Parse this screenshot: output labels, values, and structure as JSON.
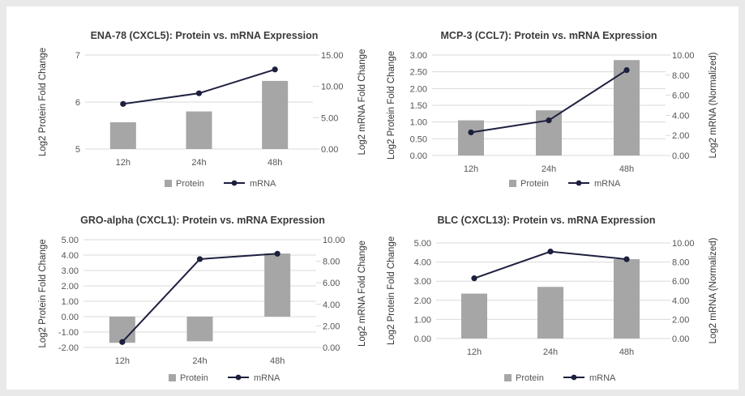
{
  "colors": {
    "bar": "#a6a6a6",
    "line": "#1d1f3e",
    "grid": "#d9d9d9",
    "text": "#555555"
  },
  "chart_data": [
    {
      "type": "bar-line combo",
      "title": "ENA-78 (CXCL5): Protein vs. mRNA Expression",
      "categories": [
        "12h",
        "24h",
        "48h"
      ],
      "ylabel": "Log2 Protein Fold Change",
      "y2label": "Log2 mRNA Fold Change",
      "ylim": [
        5,
        7
      ],
      "yticks": [
        5,
        6,
        7
      ],
      "ytick_labels": [
        "5",
        "6",
        "7"
      ],
      "y2lim": [
        0,
        15
      ],
      "y2ticks": [
        0,
        5,
        10,
        15
      ],
      "y2tick_labels": [
        "0.00",
        "5.00",
        "10.00",
        "15.00"
      ],
      "series": [
        {
          "name": "Protein",
          "kind": "bar",
          "axis": "left",
          "values": [
            5.57,
            5.8,
            6.45
          ]
        },
        {
          "name": "mRNA",
          "kind": "line",
          "axis": "right",
          "values": [
            7.2,
            8.9,
            12.7
          ]
        }
      ],
      "grid": "horizontal",
      "legend": "bottom"
    },
    {
      "type": "bar-line combo",
      "title": "MCP-3 (CCL7): Protein vs. mRNA Expression",
      "categories": [
        "12h",
        "24h",
        "48h"
      ],
      "ylabel": "Log2 Protein Fold Change",
      "y2label": "Log2 mRNA (Normalized)",
      "ylim": [
        0,
        3
      ],
      "yticks": [
        0,
        0.5,
        1,
        1.5,
        2,
        2.5,
        3
      ],
      "ytick_labels": [
        "0.00",
        "0.50",
        "1.00",
        "1.50",
        "2.00",
        "2.50",
        "3.00"
      ],
      "y2lim": [
        0,
        10
      ],
      "y2ticks": [
        0,
        2,
        4,
        6,
        8,
        10
      ],
      "y2tick_labels": [
        "0.00",
        "2.00",
        "4.00",
        "6.00",
        "8.00",
        "10.00"
      ],
      "series": [
        {
          "name": "Protein",
          "kind": "bar",
          "axis": "left",
          "values": [
            1.05,
            1.35,
            2.85
          ]
        },
        {
          "name": "mRNA",
          "kind": "line",
          "axis": "right",
          "values": [
            2.3,
            3.5,
            8.5
          ]
        }
      ],
      "grid": "horizontal",
      "legend": "bottom"
    },
    {
      "type": "bar-line combo",
      "title": "GRO-alpha (CXCL1): Protein vs. mRNA Expression",
      "categories": [
        "12h",
        "24h",
        "48h"
      ],
      "ylabel": "Log2 Protein Fold Change",
      "y2label": "Log2 mRNA Fold Change",
      "ylim": [
        -2,
        5
      ],
      "yticks": [
        -2,
        -1,
        0,
        1,
        2,
        3,
        4,
        5
      ],
      "ytick_labels": [
        "-2.00",
        "-1.00",
        "0.00",
        "1.00",
        "2.00",
        "3.00",
        "4.00",
        "5.00"
      ],
      "y2lim": [
        0,
        10
      ],
      "y2ticks": [
        0,
        2,
        4,
        6,
        8,
        10
      ],
      "y2tick_labels": [
        "0.00",
        "2.00",
        "4.00",
        "6.00",
        "8.00",
        "10.00"
      ],
      "series": [
        {
          "name": "Protein",
          "kind": "bar",
          "axis": "left",
          "values": [
            -1.7,
            -1.6,
            4.1
          ]
        },
        {
          "name": "mRNA",
          "kind": "line",
          "axis": "right",
          "values": [
            0.5,
            8.2,
            8.7
          ]
        }
      ],
      "grid": "horizontal",
      "legend": "bottom"
    },
    {
      "type": "bar-line combo",
      "title": "BLC (CXCL13): Protein vs. mRNA Expression",
      "categories": [
        "12h",
        "24h",
        "48h"
      ],
      "ylabel": "Log2 Protein Fold Change",
      "y2label": "Log2 mRNA (Normalized)",
      "ylim": [
        0,
        5
      ],
      "yticks": [
        0,
        1,
        2,
        3,
        4,
        5
      ],
      "ytick_labels": [
        "0.00",
        "1.00",
        "2.00",
        "3.00",
        "4.00",
        "5.00"
      ],
      "y2lim": [
        0,
        10
      ],
      "y2ticks": [
        0,
        2,
        4,
        6,
        8,
        10
      ],
      "y2tick_labels": [
        "0.00",
        "2.00",
        "4.00",
        "6.00",
        "8.00",
        "10.00"
      ],
      "series": [
        {
          "name": "Protein",
          "kind": "bar",
          "axis": "left",
          "values": [
            2.35,
            2.7,
            4.15
          ]
        },
        {
          "name": "mRNA",
          "kind": "line",
          "axis": "right",
          "values": [
            6.3,
            9.1,
            8.3
          ]
        }
      ],
      "grid": "horizontal",
      "legend": "bottom"
    }
  ]
}
